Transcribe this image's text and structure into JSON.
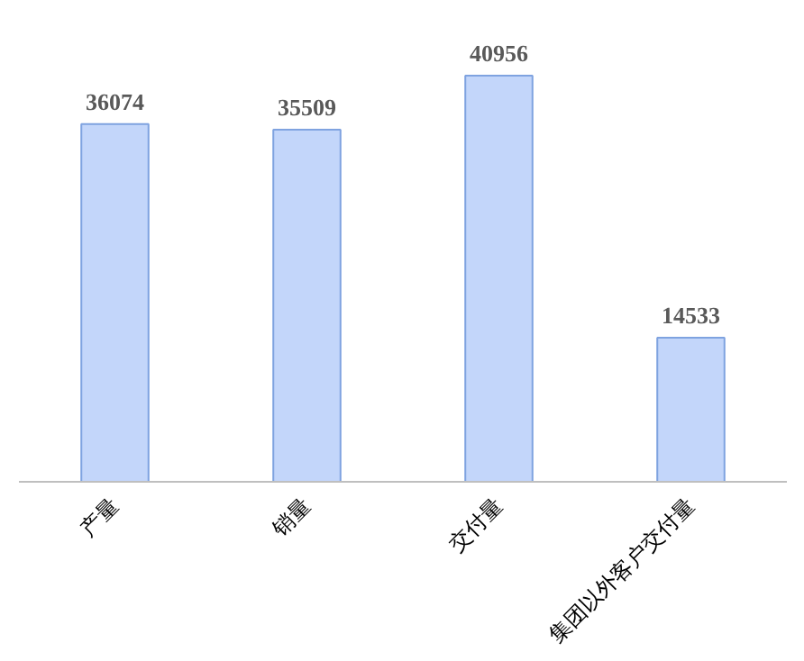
{
  "chart_data": {
    "type": "bar",
    "categories": [
      "产量",
      "销量",
      "交付量",
      "集团以外客户交付量"
    ],
    "values": [
      36074,
      35509,
      40956,
      14533
    ],
    "color": "#c3d6fa",
    "data_labels": true,
    "grid": false
  }
}
